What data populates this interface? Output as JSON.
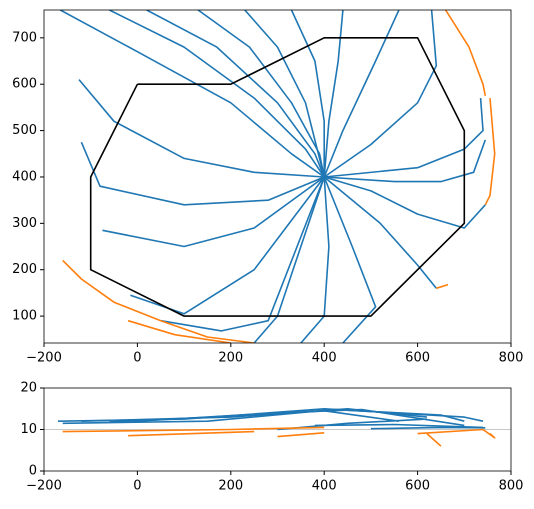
{
  "chart_data": [
    {
      "type": "line",
      "xlim": [
        -200,
        800
      ],
      "ylim": [
        42,
        760
      ],
      "xticks": [
        {
          "value": -200,
          "label": "−200"
        },
        0,
        200,
        400,
        600,
        800
      ],
      "yticks": [
        100,
        200,
        300,
        400,
        500,
        600,
        700
      ],
      "series": [
        {
          "color": "#1f77b4",
          "x": [
            -165,
            0,
            200,
            330,
            400
          ],
          "values": [
            760,
            670,
            560,
            450,
            400
          ]
        },
        {
          "color": "#1f77b4",
          "x": [
            -60,
            100,
            250,
            360,
            400
          ],
          "values": [
            760,
            680,
            570,
            460,
            400
          ]
        },
        {
          "color": "#1f77b4",
          "x": [
            20,
            170,
            300,
            380,
            400
          ],
          "values": [
            760,
            680,
            560,
            450,
            400
          ]
        },
        {
          "color": "#1f77b4",
          "x": [
            130,
            240,
            330,
            390,
            400
          ],
          "values": [
            760,
            680,
            560,
            450,
            400
          ]
        },
        {
          "color": "#1f77b4",
          "x": [
            230,
            300,
            360,
            400
          ],
          "values": [
            760,
            680,
            560,
            400
          ]
        },
        {
          "color": "#1f77b4",
          "x": [
            330,
            380,
            400,
            400
          ],
          "values": [
            760,
            650,
            520,
            400
          ]
        },
        {
          "color": "#1f77b4",
          "x": [
            440,
            430,
            410,
            400
          ],
          "values": [
            760,
            650,
            520,
            400
          ]
        },
        {
          "color": "#1f77b4",
          "x": [
            560,
            510,
            440,
            400
          ],
          "values": [
            760,
            650,
            500,
            400
          ]
        },
        {
          "color": "#1f77b4",
          "x": [
            630,
            640,
            600,
            500,
            400
          ],
          "values": [
            760,
            640,
            560,
            470,
            400
          ]
        },
        {
          "color": "#1f77b4",
          "x": [
            735,
            740,
            700,
            600,
            400
          ],
          "values": [
            570,
            500,
            460,
            420,
            400
          ]
        },
        {
          "color": "#1f77b4",
          "x": [
            745,
            720,
            650,
            550,
            400
          ],
          "values": [
            480,
            410,
            390,
            390,
            400
          ]
        },
        {
          "color": "#1f77b4",
          "x": [
            745,
            700,
            600,
            500,
            400
          ],
          "values": [
            340,
            290,
            320,
            370,
            400
          ]
        },
        {
          "color": "#1f77b4",
          "x": [
            640,
            600,
            520,
            400
          ],
          "values": [
            160,
            210,
            300,
            400
          ]
        },
        {
          "color": "#1f77b4",
          "x": [
            440,
            510,
            460,
            400
          ],
          "values": [
            42,
            120,
            250,
            400
          ]
        },
        {
          "color": "#1f77b4",
          "x": [
            350,
            400,
            410,
            400
          ],
          "values": [
            42,
            100,
            250,
            400
          ]
        },
        {
          "color": "#1f77b4",
          "x": [
            250,
            300,
            340,
            400
          ],
          "values": [
            42,
            100,
            220,
            400
          ]
        },
        {
          "color": "#1f77b4",
          "x": [
            50,
            180,
            280,
            400
          ],
          "values": [
            90,
            68,
            90,
            400
          ]
        },
        {
          "color": "#1f77b4",
          "x": [
            -15,
            100,
            250,
            400
          ],
          "values": [
            145,
            105,
            200,
            400
          ]
        },
        {
          "color": "#1f77b4",
          "x": [
            -75,
            100,
            250,
            400
          ],
          "values": [
            285,
            250,
            290,
            400
          ]
        },
        {
          "color": "#1f77b4",
          "x": [
            -120,
            -80,
            100,
            280,
            400
          ],
          "values": [
            475,
            380,
            340,
            350,
            400
          ]
        },
        {
          "color": "#1f77b4",
          "x": [
            -125,
            -50,
            100,
            250,
            400
          ],
          "values": [
            610,
            520,
            440,
            410,
            400
          ]
        },
        {
          "color": "#ff7f0e",
          "x": [
            660,
            710,
            740,
            745
          ],
          "values": [
            760,
            680,
            600,
            575
          ]
        },
        {
          "color": "#ff7f0e",
          "x": [
            755,
            765,
            755,
            745
          ],
          "values": [
            570,
            450,
            360,
            340
          ]
        },
        {
          "color": "#ff7f0e",
          "x": [
            -160,
            -120,
            -50,
            50,
            150,
            250
          ],
          "values": [
            220,
            180,
            130,
            90,
            55,
            42
          ]
        },
        {
          "color": "#ff7f0e",
          "x": [
            -20,
            80,
            200
          ],
          "values": [
            90,
            60,
            42
          ]
        },
        {
          "color": "#ff7f0e",
          "x": [
            640,
            665
          ],
          "values": [
            160,
            168
          ]
        },
        {
          "color": "#000000",
          "x": [
            0,
            200,
            400,
            600,
            700,
            700,
            500,
            100,
            -100,
            -100,
            0
          ],
          "values": [
            600,
            600,
            700,
            700,
            500,
            300,
            100,
            100,
            200,
            400,
            600
          ]
        }
      ]
    },
    {
      "type": "line",
      "xlim": [
        -200,
        800
      ],
      "ylim": [
        0,
        20
      ],
      "xticks": [
        {
          "value": -200,
          "label": "−200"
        },
        0,
        200,
        400,
        600,
        800
      ],
      "yticks": [
        0,
        10,
        20
      ],
      "hline": 10,
      "series": [
        {
          "color": "#1f77b4",
          "x": [
            -170,
            100,
            400,
            700,
            740
          ],
          "values": [
            12,
            12.5,
            15,
            13,
            12
          ]
        },
        {
          "color": "#1f77b4",
          "x": [
            -160,
            150,
            420,
            650,
            700
          ],
          "values": [
            11.5,
            12,
            14.8,
            13.5,
            12
          ]
        },
        {
          "color": "#1f77b4",
          "x": [
            -120,
            200,
            450,
            620
          ],
          "values": [
            12,
            13,
            15,
            13
          ]
        },
        {
          "color": "#1f77b4",
          "x": [
            -60,
            250,
            400,
            560
          ],
          "values": [
            11.8,
            13.5,
            14.5,
            12
          ]
        },
        {
          "color": "#1f77b4",
          "x": [
            0,
            300,
            480,
            700
          ],
          "values": [
            12,
            14,
            14.8,
            11
          ]
        },
        {
          "color": "#1f77b4",
          "x": [
            380,
            550,
            740
          ],
          "values": [
            11,
            11.2,
            10.5
          ]
        },
        {
          "color": "#1f77b4",
          "x": [
            300,
            450,
            620
          ],
          "values": [
            10,
            11.5,
            12.5
          ]
        },
        {
          "color": "#1f77b4",
          "x": [
            500,
            650,
            745
          ],
          "values": [
            10.2,
            10.5,
            10.4
          ]
        },
        {
          "color": "#ff7f0e",
          "x": [
            -160,
            200,
            400
          ],
          "values": [
            9.5,
            10,
            10.5
          ]
        },
        {
          "color": "#ff7f0e",
          "x": [
            -20,
            250
          ],
          "values": [
            8.5,
            9.5
          ]
        },
        {
          "color": "#ff7f0e",
          "x": [
            300,
            400
          ],
          "values": [
            8.3,
            9.2
          ]
        },
        {
          "color": "#ff7f0e",
          "x": [
            600,
            740,
            765,
            755
          ],
          "values": [
            9,
            10,
            8,
            9
          ]
        },
        {
          "color": "#ff7f0e",
          "x": [
            620,
            650
          ],
          "values": [
            9,
            6
          ]
        }
      ]
    }
  ]
}
